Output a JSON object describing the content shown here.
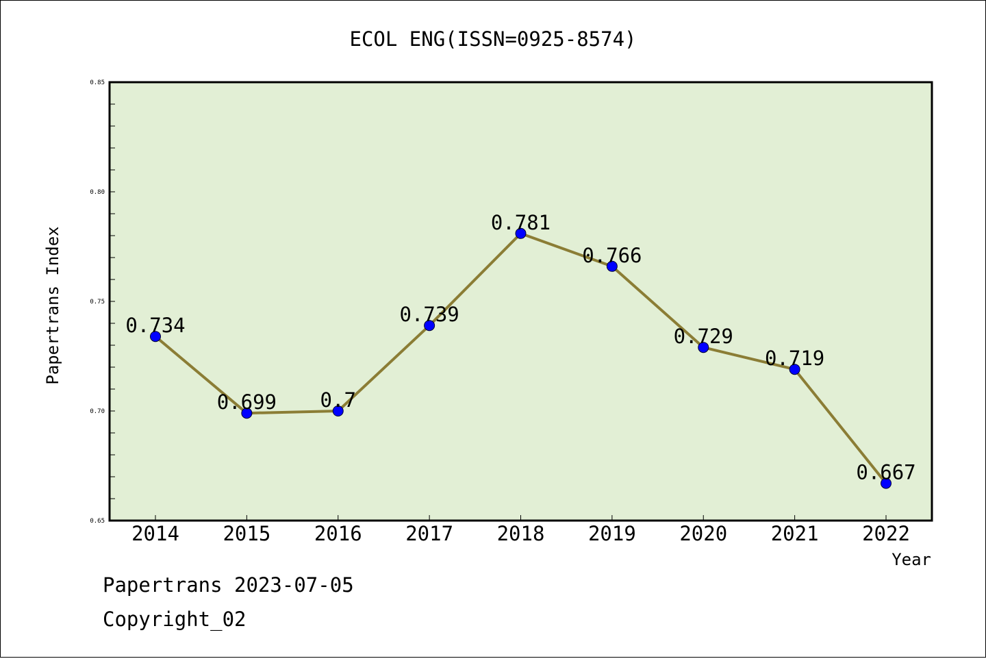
{
  "chart_data": {
    "type": "line",
    "title": "ECOL ENG(ISSN=0925-8574)",
    "xlabel": "Year",
    "ylabel": "Papertrans Index",
    "categories": [
      "2014",
      "2015",
      "2016",
      "2017",
      "2018",
      "2019",
      "2020",
      "2021",
      "2022"
    ],
    "series": [
      {
        "values": [
          0.734,
          0.699,
          0.7,
          0.739,
          0.781,
          0.766,
          0.729,
          0.719,
          0.667
        ],
        "labels": [
          "0.734",
          "0.699",
          "0.7",
          "0.739",
          "0.781",
          "0.766",
          "0.729",
          "0.719",
          "0.667"
        ]
      }
    ],
    "ylim": [
      0.65,
      0.85
    ],
    "yticks": [
      "0.65",
      "0.70",
      "0.75",
      "0.80",
      "0.85"
    ],
    "grid": false,
    "plot_background": "#e2efd5",
    "line_color": "#8b7d35",
    "marker_color": "#0000ff"
  },
  "footer": {
    "line1": "Papertrans 2023-07-05",
    "line2": "Copyright_02"
  }
}
